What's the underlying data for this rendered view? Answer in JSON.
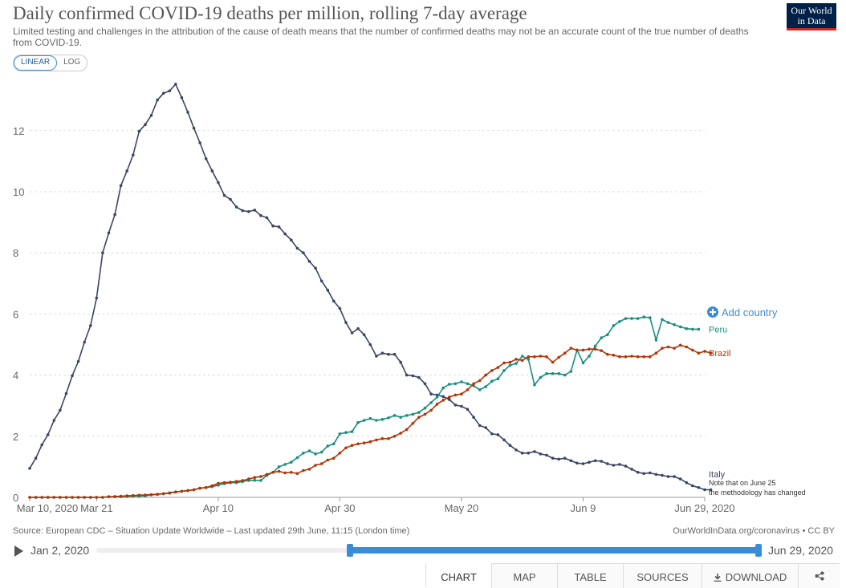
{
  "header": {
    "title": "Daily confirmed COVID-19 deaths per million, rolling 7-day average",
    "subtitle": "Limited testing and challenges in the attribution of the cause of death means that the number of confirmed deaths may not be an accurate count of the true number of deaths from COVID-19.",
    "logo_line1": "Our World",
    "logo_line2": "in Data"
  },
  "scale_toggle": {
    "linear": "LINEAR",
    "log": "LOG"
  },
  "add_country": "Add country",
  "colors": {
    "Italy": "#3c4563",
    "Peru": "#17907f",
    "Brazil": "#b13507",
    "accent": "#3b8cd6"
  },
  "chart_data": {
    "type": "line",
    "xlabel": "",
    "ylabel": "",
    "ylim": [
      0,
      13.6
    ],
    "yticks": [
      0,
      2,
      4,
      6,
      8,
      10,
      12
    ],
    "x_start": "Mar 10, 2020",
    "x_end": "Jun 29, 2020",
    "xtick_labels": [
      "Mar 10, 2020",
      "Mar 21",
      "Apr 10",
      "Apr 30",
      "May 20",
      "Jun 9",
      "Jun 29, 2020"
    ],
    "xtick_days": [
      0,
      11,
      31,
      51,
      71,
      91,
      111
    ],
    "grid": "horizontal dashed",
    "series": [
      {
        "name": "Italy",
        "values": [
          0.95,
          1.28,
          1.72,
          2.05,
          2.52,
          2.85,
          3.4,
          3.98,
          4.45,
          5.08,
          5.62,
          6.52,
          8.0,
          8.65,
          9.25,
          10.2,
          10.68,
          11.2,
          11.98,
          12.2,
          12.5,
          13.0,
          13.22,
          13.3,
          13.52,
          13.08,
          12.6,
          12.08,
          11.6,
          11.08,
          10.68,
          10.3,
          9.88,
          9.75,
          9.5,
          9.38,
          9.35,
          9.4,
          9.22,
          9.15,
          8.88,
          8.85,
          8.62,
          8.42,
          8.15,
          8.0,
          7.72,
          7.5,
          7.08,
          6.78,
          6.42,
          6.18,
          5.72,
          5.38,
          5.52,
          5.32,
          5.0,
          4.62,
          4.72,
          4.68,
          4.68,
          4.42,
          4.0,
          3.98,
          3.92,
          3.72,
          3.38,
          3.35,
          3.3,
          3.2,
          3.02,
          2.98,
          2.88,
          2.62,
          2.35,
          2.28,
          2.08,
          2.05,
          1.88,
          1.7,
          1.55,
          1.45,
          1.45,
          1.5,
          1.42,
          1.38,
          1.28,
          1.25,
          1.28,
          1.2,
          1.12,
          1.1,
          1.15,
          1.2,
          1.18,
          1.1,
          1.05,
          1.08,
          1.02,
          0.92,
          0.82,
          0.78,
          0.8,
          0.75,
          0.72,
          0.68,
          0.68,
          0.6,
          0.48,
          0.38,
          0.32,
          0.25,
          0.25
        ],
        "end_label": "Italy",
        "note": "Note that on June 25 the methodology has changed"
      },
      {
        "name": "Peru",
        "values": [
          0,
          0,
          0,
          0,
          0,
          0,
          0,
          0,
          0,
          0,
          0,
          0,
          0,
          0.02,
          0.02,
          0.02,
          0.03,
          0.04,
          0.04,
          0.05,
          0.08,
          0.1,
          0.12,
          0.15,
          0.18,
          0.2,
          0.22,
          0.25,
          0.3,
          0.32,
          0.35,
          0.4,
          0.45,
          0.48,
          0.48,
          0.52,
          0.55,
          0.56,
          0.55,
          0.72,
          0.82,
          1.0,
          1.08,
          1.15,
          1.3,
          1.45,
          1.52,
          1.42,
          1.48,
          1.68,
          1.75,
          2.08,
          2.12,
          2.15,
          2.45,
          2.52,
          2.58,
          2.52,
          2.55,
          2.6,
          2.68,
          2.62,
          2.68,
          2.72,
          2.78,
          2.92,
          3.1,
          3.28,
          3.58,
          3.7,
          3.72,
          3.78,
          3.72,
          3.65,
          3.52,
          3.62,
          3.8,
          3.88,
          4.15,
          4.32,
          4.38,
          4.62,
          4.52,
          3.68,
          3.92,
          4.05,
          4.05,
          4.05,
          4.0,
          4.12,
          4.82,
          4.4,
          4.62,
          4.95,
          5.22,
          5.32,
          5.62,
          5.75,
          5.85,
          5.85,
          5.85,
          5.9,
          5.88,
          5.15,
          5.82,
          5.72,
          5.65,
          5.58,
          5.52,
          5.5,
          5.5
        ],
        "end_label": "Peru"
      },
      {
        "name": "Brazil",
        "values": [
          0,
          0,
          0,
          0,
          0,
          0,
          0,
          0,
          0,
          0,
          0,
          0,
          0,
          0.02,
          0.03,
          0.04,
          0.05,
          0.06,
          0.07,
          0.08,
          0.09,
          0.1,
          0.12,
          0.14,
          0.17,
          0.2,
          0.22,
          0.25,
          0.3,
          0.32,
          0.38,
          0.46,
          0.48,
          0.5,
          0.52,
          0.55,
          0.6,
          0.65,
          0.68,
          0.75,
          0.82,
          0.85,
          0.8,
          0.82,
          0.78,
          0.88,
          0.92,
          1.05,
          1.1,
          1.22,
          1.28,
          1.45,
          1.62,
          1.7,
          1.75,
          1.78,
          1.82,
          1.88,
          1.92,
          1.92,
          2.0,
          2.1,
          2.22,
          2.42,
          2.62,
          2.72,
          2.85,
          3.05,
          3.18,
          3.28,
          3.35,
          3.38,
          3.52,
          3.72,
          3.82,
          4.0,
          4.15,
          4.25,
          4.4,
          4.42,
          4.52,
          4.48,
          4.6,
          4.6,
          4.62,
          4.6,
          4.42,
          4.58,
          4.72,
          4.88,
          4.82,
          4.82,
          4.85,
          4.85,
          4.8,
          4.68,
          4.65,
          4.6,
          4.6,
          4.62,
          4.6,
          4.6,
          4.6,
          4.72,
          4.88,
          4.92,
          4.88,
          4.98,
          4.92,
          4.82,
          4.72,
          4.78,
          4.72
        ],
        "end_label": "Brazil"
      }
    ]
  },
  "footer": {
    "source": "Source: European CDC – Situation Update Worldwide – Last updated 29th June, 11:15 (London time)",
    "license": "OurWorldInData.org/coronavirus • CC BY"
  },
  "timeline": {
    "start_label": "Jan 2, 2020",
    "end_label": "Jun 29, 2020"
  },
  "tabs": [
    {
      "id": "chart",
      "label": "CHART"
    },
    {
      "id": "map",
      "label": "MAP"
    },
    {
      "id": "table",
      "label": "TABLE"
    },
    {
      "id": "sources",
      "label": "SOURCES"
    },
    {
      "id": "download",
      "label": "DOWNLOAD"
    }
  ]
}
